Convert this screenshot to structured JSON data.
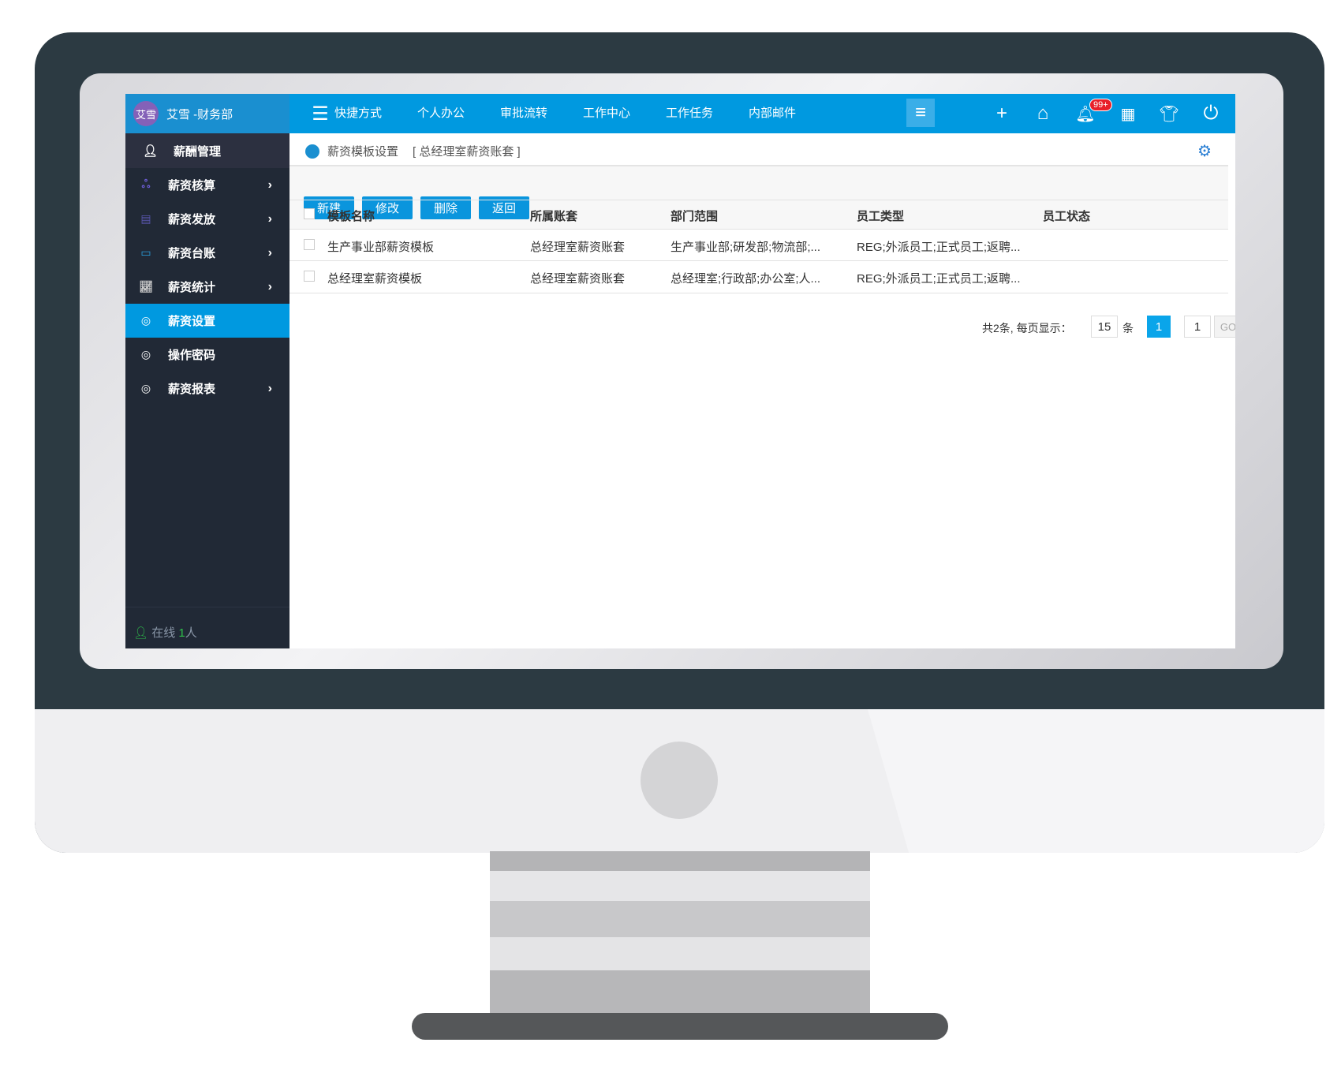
{
  "user": {
    "avatar_text": "艾雪",
    "name": "艾雪 -财务部"
  },
  "nav": {
    "items": [
      "快捷方式",
      "个人办公",
      "审批流转",
      "工作中心",
      "工作任务",
      "内部邮件"
    ],
    "badge": "99+"
  },
  "sidebar": {
    "section": "薪酬管理",
    "items": [
      {
        "label": "薪资核算",
        "icon": "org-icon",
        "chevron": true
      },
      {
        "label": "薪资发放",
        "icon": "payment-icon",
        "chevron": true
      },
      {
        "label": "薪资台账",
        "icon": "wallet-icon",
        "chevron": true
      },
      {
        "label": "薪资统计",
        "icon": "chart-icon",
        "chevron": true
      },
      {
        "label": "薪资设置",
        "icon": "salary-icon",
        "chevron": false,
        "active": true
      },
      {
        "label": "操作密码",
        "icon": "hr-icon",
        "chevron": false
      },
      {
        "label": "薪资报表",
        "icon": "hr-icon",
        "chevron": true
      }
    ],
    "online_label": "在线",
    "online_count": "1",
    "online_unit": "人",
    "search_placeholder": ""
  },
  "content": {
    "title": "薪资模板设置",
    "subtitle": "[ 总经理室薪资账套 ]",
    "buttons": [
      "新建",
      "修改",
      "删除",
      "返回"
    ],
    "columns": [
      "模板名称",
      "所属账套",
      "部门范围",
      "员工类型",
      "员工状态"
    ],
    "rows": [
      [
        "生产事业部薪资模板",
        "总经理室薪资账套",
        "生产事业部;研发部;物流部;...",
        "REG;外派员工;正式员工;返聘...",
        ""
      ],
      [
        "总经理室薪资模板",
        "总经理室薪资账套",
        "总经理室;行政部;办公室;人...",
        "REG;外派员工;正式员工;返聘...",
        ""
      ]
    ],
    "pagination": {
      "total_text": "共2条, 每页显示：",
      "page_size": "15",
      "unit": "条",
      "current_page": "1",
      "goto_value": "1",
      "go_label": "GO"
    }
  },
  "colors": {
    "accent": "#0099e0",
    "sidebar": "#212936",
    "bezel": "#2c3a42"
  }
}
